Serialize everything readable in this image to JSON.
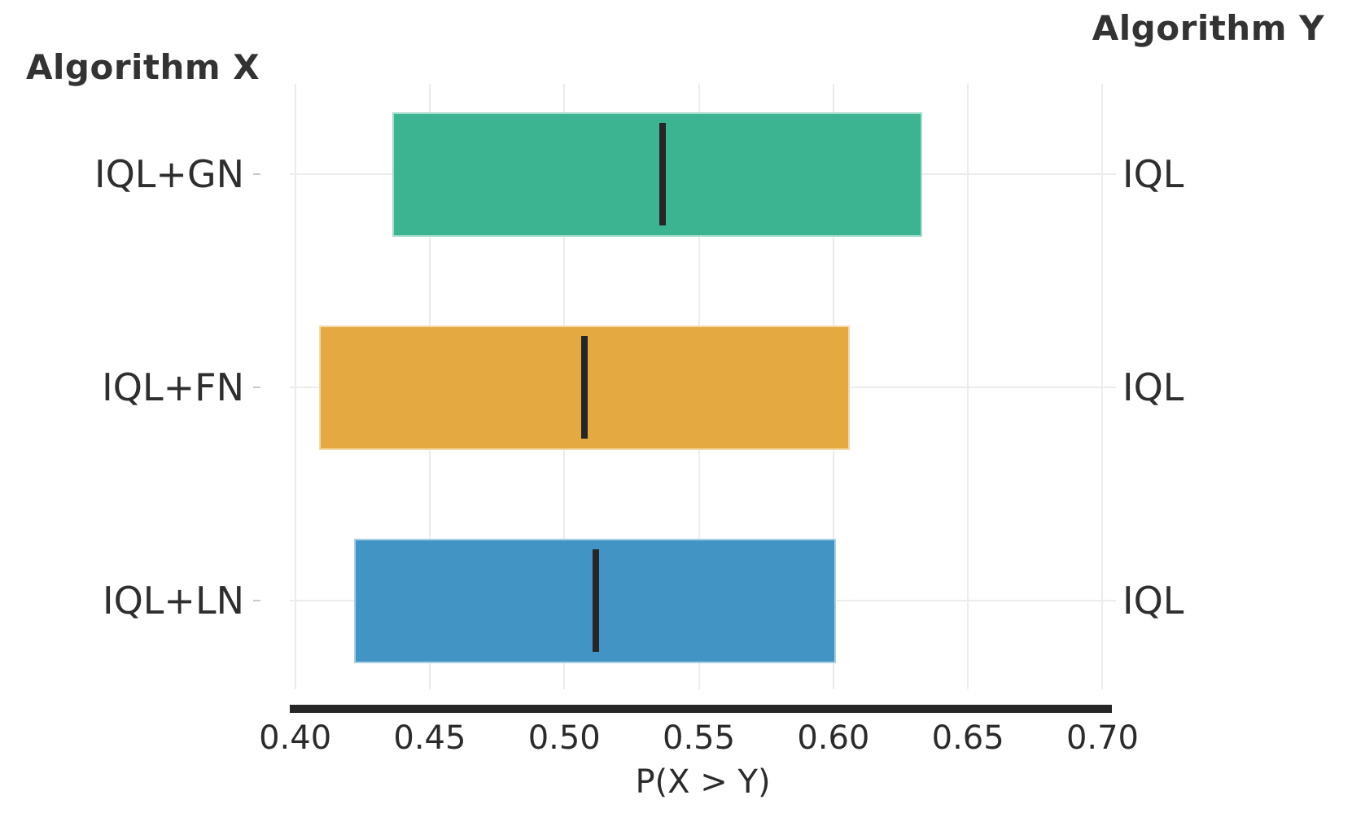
{
  "chart_data": {
    "type": "bar",
    "subtype": "probability-of-improvement-interval-plot",
    "title_left": "Algorithm X",
    "title_right": "Algorithm Y",
    "xlabel": "P(X > Y)",
    "xlim": [
      0.398,
      0.705
    ],
    "xticks": [
      0.4,
      0.45,
      0.5,
      0.55,
      0.6,
      0.65,
      0.7
    ],
    "xtick_labels": [
      "0.40",
      "0.45",
      "0.50",
      "0.55",
      "0.60",
      "0.65",
      "0.70"
    ],
    "grid": true,
    "legend_position": "none",
    "colors": {
      "axis_line": "#262626",
      "median_line": "#262626",
      "gridline": "#ececec",
      "text": "#2e2e2e",
      "title_text": "#333333"
    },
    "rows": [
      {
        "algorithm_x": "IQL+GN",
        "algorithm_y": "IQL",
        "ci_low": 0.436,
        "ci_high": 0.633,
        "point": 0.536,
        "color": "#3DB491"
      },
      {
        "algorithm_x": "IQL+FN",
        "algorithm_y": "IQL",
        "ci_low": 0.409,
        "ci_high": 0.606,
        "point": 0.507,
        "color": "#E5A942"
      },
      {
        "algorithm_x": "IQL+LN",
        "algorithm_y": "IQL",
        "ci_low": 0.422,
        "ci_high": 0.601,
        "point": 0.511,
        "color": "#4294C5"
      }
    ]
  }
}
